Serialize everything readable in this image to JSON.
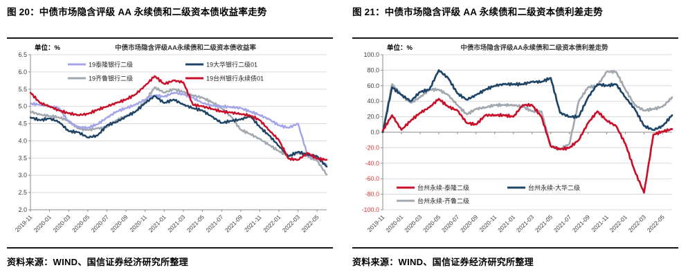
{
  "figures": [
    {
      "id": "figure20",
      "caption": "图 20：中债市场隐含评级 AA 永续债和二级资本债收益率走势",
      "source": "资料来源：WIND、国信证券经济研究所整理"
    },
    {
      "id": "figure21",
      "caption": "图 21：中债市场隐含评级 AA 永续债和二级资本债利差走势",
      "source": "资料来源：WIND、国信证券经济研究所整理"
    }
  ],
  "colors": {
    "red": "#c8102a",
    "navy": "#1e4466",
    "gray": "#a2a8b0",
    "purple": "#a3a5e8",
    "grid": "#d9d9d9",
    "axis": "#8a8a8a",
    "tick_text": "#3c3c3c",
    "negative_tick_text": "#e53333",
    "title_text": "#3a3a3a"
  },
  "chart_data": [
    {
      "type": "line",
      "title": "中债市场隐含评级AA永续债和二级资本债收益率",
      "unit_label": "单位：%",
      "x": [
        "2019-11",
        "2019-12",
        "2020-01",
        "2020-02",
        "2020-03",
        "2020-04",
        "2020-05",
        "2020-06",
        "2020-07",
        "2020-08",
        "2020-09",
        "2020-10",
        "2020-11",
        "2020-12",
        "2021-01",
        "2021-02",
        "2021-03",
        "2021-04",
        "2021-05",
        "2021-06",
        "2021-07",
        "2021-08",
        "2021-09",
        "2021-10",
        "2021-11",
        "2021-12",
        "2022-01",
        "2022-02",
        "2022-03",
        "2022-04",
        "2022-05",
        "2022-06"
      ],
      "x_tick_labels": [
        "2019-11",
        "2020-01",
        "2020-03",
        "2020-05",
        "2020-07",
        "2020-09",
        "2020-11",
        "2021-01",
        "2021-03",
        "2021-05",
        "2021-07",
        "2021-09",
        "2021-11",
        "2022-01",
        "2022-03",
        "2022-05"
      ],
      "x_tick_every": 2,
      "ylim": [
        2.0,
        6.5
      ],
      "ytick_step": 0.5,
      "y_decimals": 1,
      "axis_cross_y": 2.0,
      "grid": true,
      "legend_position": "top-inside",
      "legend_rows": [
        [
          0,
          1
        ],
        [
          2,
          3
        ]
      ],
      "series": [
        {
          "name": "19泰隆银行二级",
          "color": "#a3a5e8",
          "values": [
            5.08,
            5.05,
            5.0,
            4.95,
            4.55,
            4.4,
            4.38,
            4.48,
            4.67,
            4.85,
            4.95,
            5.05,
            5.2,
            5.32,
            5.28,
            5.4,
            5.35,
            5.25,
            5.1,
            5.02,
            5.0,
            4.98,
            4.95,
            4.85,
            4.75,
            4.62,
            4.45,
            4.38,
            4.5,
            3.58,
            3.5,
            3.3
          ]
        },
        {
          "name": "19大华银行二级01",
          "color": "#1e4466",
          "values": [
            4.68,
            4.6,
            4.65,
            4.55,
            4.28,
            4.25,
            4.1,
            4.15,
            4.45,
            4.55,
            4.7,
            4.85,
            5.1,
            5.3,
            5.1,
            5.2,
            5.05,
            4.95,
            4.88,
            4.7,
            4.52,
            4.58,
            4.62,
            4.72,
            4.4,
            4.15,
            3.85,
            3.55,
            3.68,
            3.6,
            3.55,
            3.25
          ]
        },
        {
          "name": "19齐鲁银行二级",
          "color": "#a2a8b0",
          "values": [
            4.85,
            4.76,
            4.72,
            4.68,
            4.58,
            4.36,
            4.32,
            4.36,
            4.4,
            4.6,
            4.72,
            4.85,
            5.15,
            5.55,
            5.4,
            5.5,
            5.42,
            5.32,
            5.25,
            5.12,
            4.95,
            4.7,
            4.32,
            4.2,
            4.05,
            3.88,
            3.7,
            3.55,
            3.65,
            3.55,
            3.42,
            3.02
          ]
        },
        {
          "name": "19台州银行永续债01",
          "color": "#c8102a",
          "values": [
            5.4,
            5.1,
            5.0,
            4.88,
            4.8,
            4.75,
            4.78,
            4.9,
            5.0,
            5.1,
            5.2,
            5.35,
            5.6,
            5.88,
            5.65,
            5.75,
            5.7,
            5.05,
            5.0,
            4.93,
            4.85,
            4.82,
            4.78,
            4.73,
            4.6,
            4.3,
            4.02,
            3.48,
            3.45,
            3.65,
            3.48,
            3.45
          ]
        }
      ],
      "draw_order": [
        2,
        0,
        1,
        3
      ]
    },
    {
      "type": "line",
      "title": "中债市场隐含评级AA永续债和二级资本债利差走势",
      "unit_label": "单位：%",
      "x": [
        "2019-11",
        "2019-12",
        "2020-01",
        "2020-02",
        "2020-03",
        "2020-04",
        "2020-05",
        "2020-06",
        "2020-07",
        "2020-08",
        "2020-09",
        "2020-10",
        "2020-11",
        "2020-12",
        "2021-01",
        "2021-02",
        "2021-03",
        "2021-04",
        "2021-05",
        "2021-06",
        "2021-07",
        "2021-08",
        "2021-09",
        "2021-10",
        "2021-11",
        "2021-12",
        "2022-01",
        "2022-02",
        "2022-03",
        "2022-04",
        "2022-05",
        "2022-06"
      ],
      "x_tick_labels": [
        "2019-11",
        "2020-01",
        "2020-03",
        "2020-05",
        "2020-07",
        "2020-09",
        "2020-11",
        "2021-01",
        "2021-03",
        "2021-05",
        "2021-07",
        "2021-09",
        "2021-11",
        "2022-01",
        "2022-03",
        "2022-05"
      ],
      "x_tick_every": 2,
      "ylim": [
        -100,
        100
      ],
      "ytick_step": 20,
      "y_decimals": 1,
      "axis_cross_y": 0,
      "grid": true,
      "legend_position": "bottom-inside",
      "legend_rows": [
        [
          0,
          1
        ],
        [
          2
        ]
      ],
      "series": [
        {
          "name": "台州永续-泰隆二级",
          "color": "#c8102a",
          "values": [
            2,
            22,
            3,
            15,
            25,
            32,
            43,
            33,
            28,
            12,
            10,
            22,
            22,
            22,
            20,
            35,
            35,
            20,
            -18,
            -22,
            -20,
            -10,
            12,
            27,
            15,
            8,
            -15,
            -50,
            -78,
            -3,
            1,
            4
          ]
        },
        {
          "name": "台州永续-大华二级",
          "color": "#1e4466",
          "values": [
            0,
            58,
            48,
            40,
            52,
            55,
            80,
            70,
            50,
            42,
            48,
            55,
            60,
            62,
            62,
            62,
            65,
            65,
            70,
            25,
            20,
            20,
            45,
            62,
            60,
            62,
            45,
            30,
            8,
            3,
            8,
            22
          ]
        },
        {
          "name": "台州永续-齐鲁二级",
          "color": "#a2a8b0",
          "values": [
            0,
            62,
            48,
            38,
            45,
            55,
            55,
            48,
            35,
            23,
            30,
            32,
            35,
            35,
            35,
            33,
            27,
            27,
            -18,
            -22,
            -15,
            40,
            58,
            60,
            78,
            78,
            55,
            35,
            28,
            30,
            33,
            45
          ]
        }
      ],
      "draw_order": [
        2,
        1,
        0
      ]
    }
  ]
}
